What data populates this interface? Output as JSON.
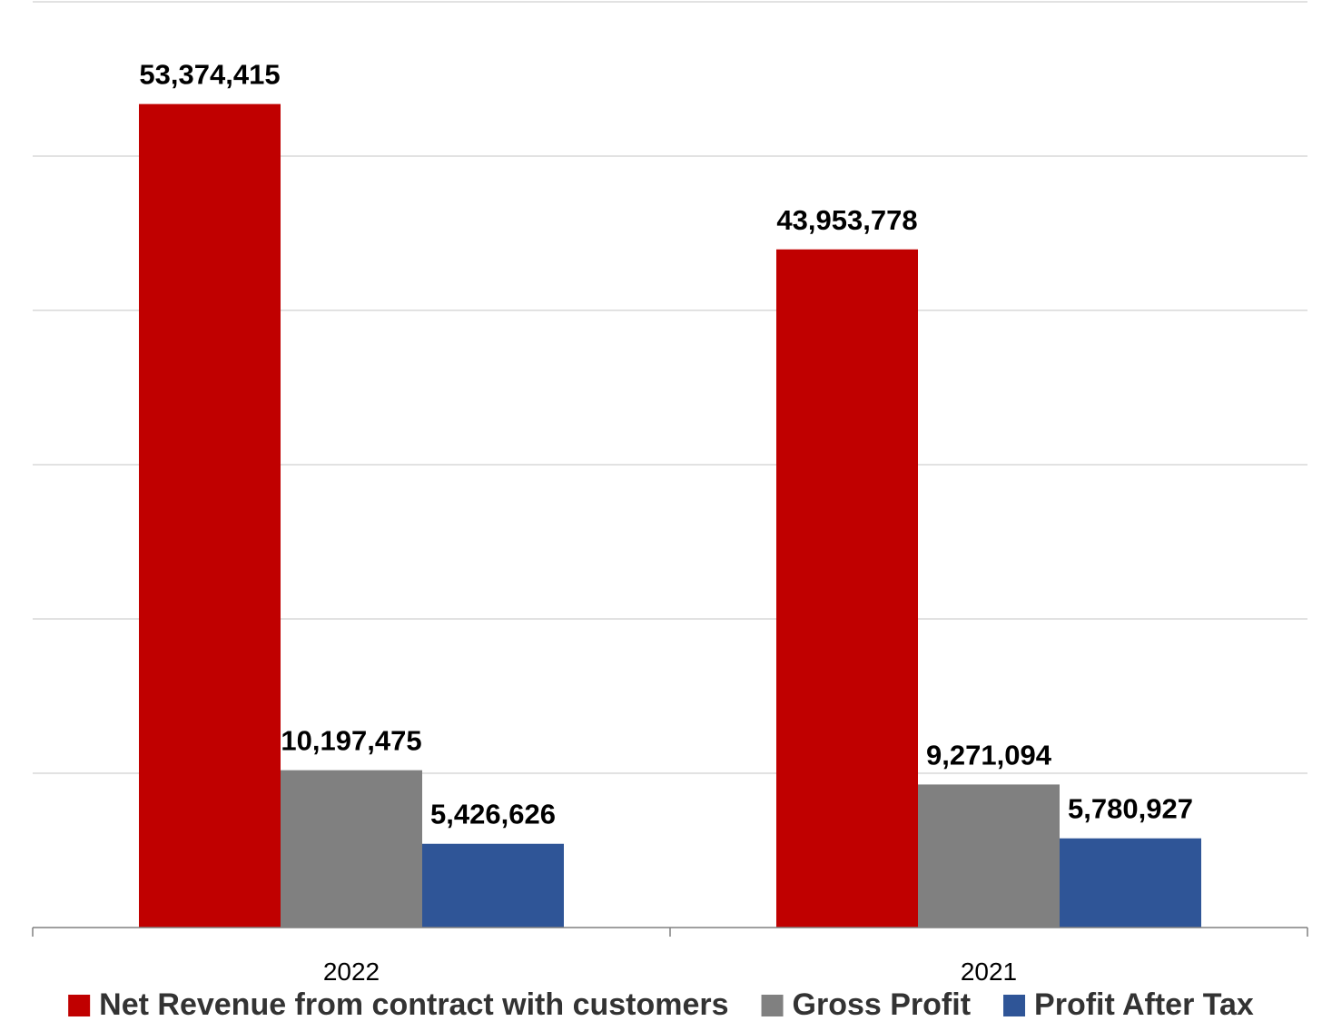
{
  "chart_data": {
    "type": "bar",
    "title": "",
    "xlabel": "",
    "ylabel": "",
    "categories": [
      "2022",
      "2021"
    ],
    "series": [
      {
        "name": "Net Revenue from contract with customers",
        "color": "#c00000",
        "values": [
          53374415,
          43953778
        ]
      },
      {
        "name": "Gross Profit",
        "color": "#808080",
        "values": [
          10197475,
          9271094
        ]
      },
      {
        "name": "Profit After Tax",
        "color": "#2f5597",
        "values": [
          5426626,
          5780927
        ]
      }
    ],
    "data_labels": [
      [
        "53,374,415",
        "43,953,778"
      ],
      [
        "10,197,475",
        "9,271,094"
      ],
      [
        "5,426,626",
        "5,780,927"
      ]
    ],
    "ylim": [
      0,
      60000000
    ],
    "grid": true,
    "legend": "bottom"
  }
}
